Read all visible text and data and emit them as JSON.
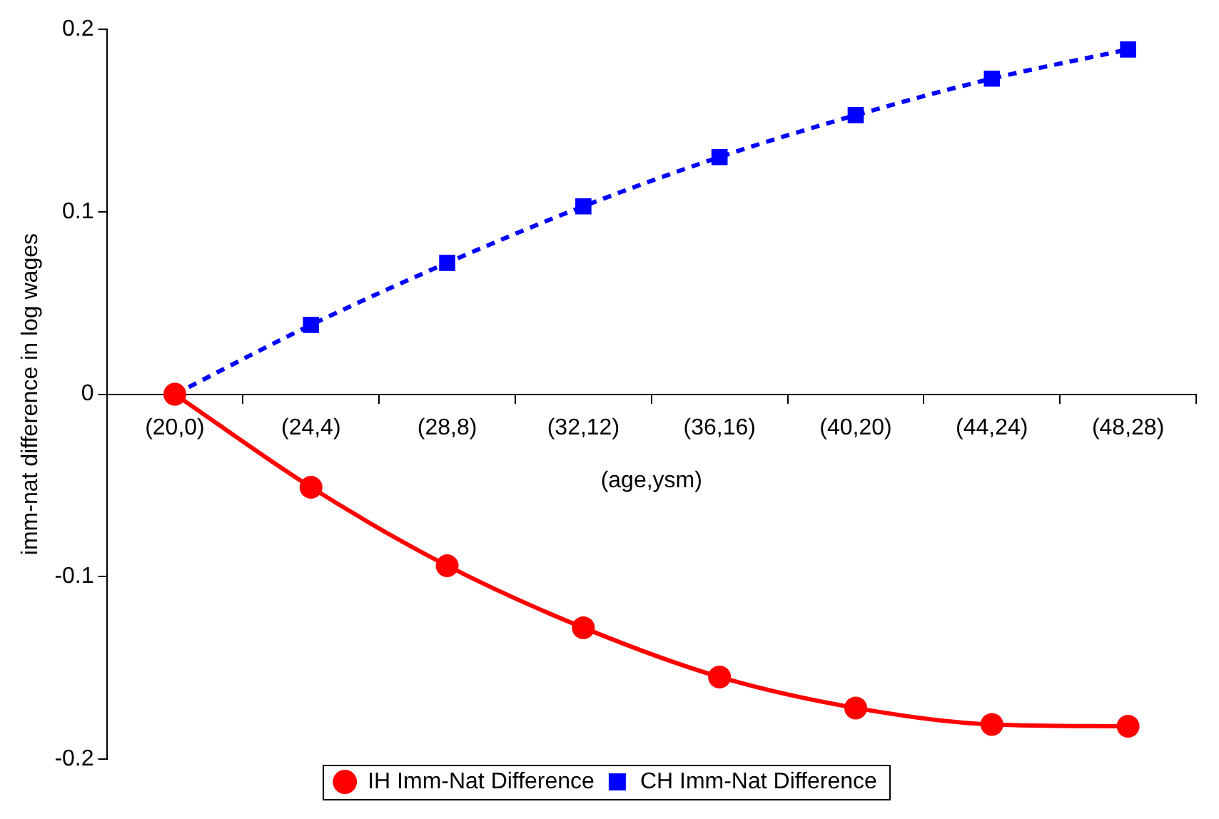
{
  "chart_data": {
    "type": "line",
    "xlabel": "(age,ysm)",
    "ylabel": "imm-nat difference in log wages",
    "categories": [
      "(20,0)",
      "(24,4)",
      "(28,8)",
      "(32,12)",
      "(36,16)",
      "(40,20)",
      "(44,24)",
      "(48,28)"
    ],
    "series": [
      {
        "name": "IH Imm-Nat Difference",
        "color": "#ff0000",
        "marker": "circle",
        "line_style": "solid",
        "values": [
          0,
          -0.051,
          -0.094,
          -0.128,
          -0.155,
          -0.172,
          -0.181,
          -0.182
        ]
      },
      {
        "name": "CH Imm-Nat Difference",
        "color": "#0000ff",
        "marker": "square",
        "line_style": "dashed",
        "values": [
          0,
          0.038,
          0.072,
          0.103,
          0.13,
          0.153,
          0.173,
          0.189
        ]
      }
    ],
    "ylim": [
      -0.2,
      0.2
    ],
    "yticks": [
      -0.2,
      -0.1,
      0,
      0.1,
      0.2
    ],
    "grid": false,
    "legend": "bottom"
  }
}
